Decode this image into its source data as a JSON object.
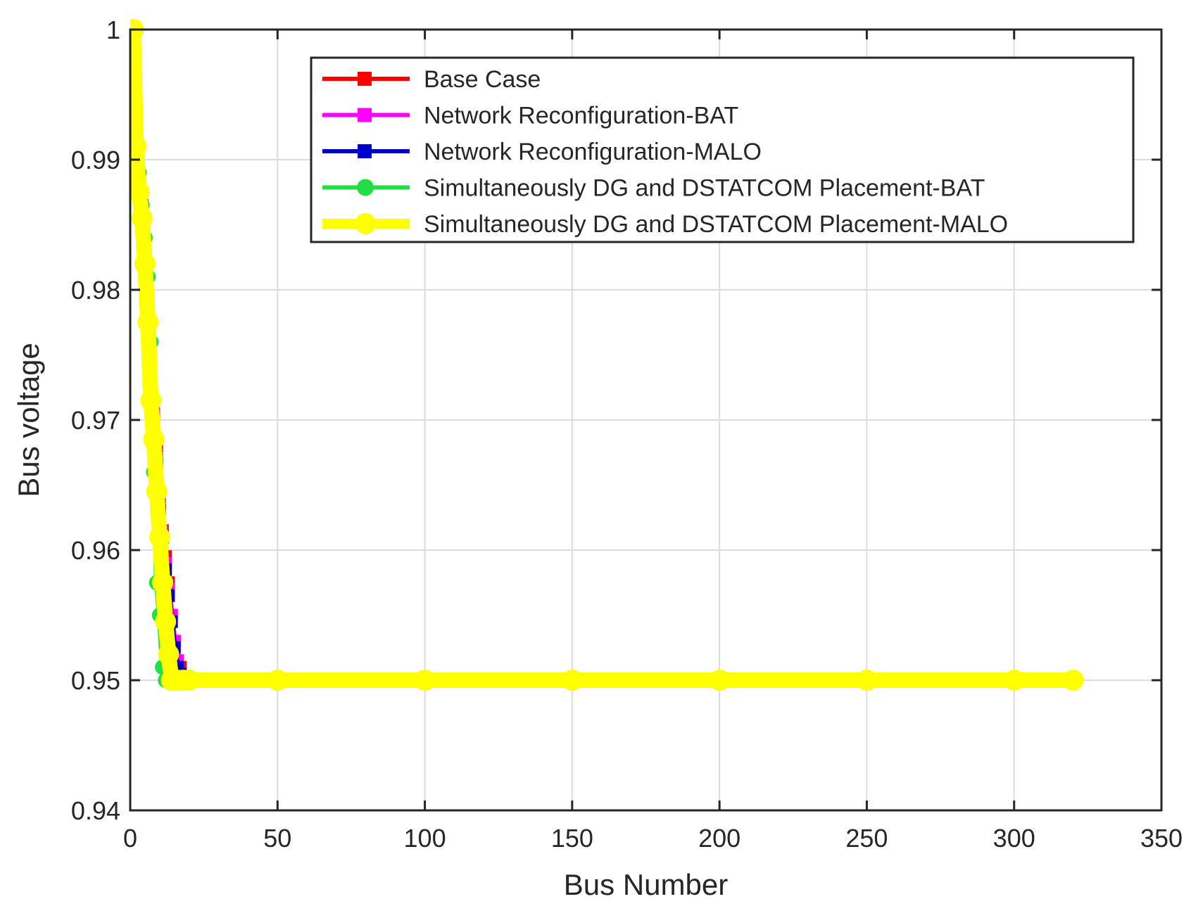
{
  "chart_data": {
    "type": "line",
    "title": "",
    "xlabel": "Bus Number",
    "ylabel": "Bus voltage",
    "xlim": [
      0,
      350
    ],
    "ylim": [
      0.94,
      1.0
    ],
    "xticks": [
      0,
      50,
      100,
      150,
      200,
      250,
      300,
      350
    ],
    "xtick_labels": [
      "0",
      "50",
      "100",
      "150",
      "200",
      "250",
      "300",
      "350"
    ],
    "yticks": [
      0.94,
      0.95,
      0.96,
      0.97,
      0.98,
      0.99,
      1.0
    ],
    "ytick_labels": [
      "0.94",
      "0.95",
      "0.96",
      "0.97",
      "0.98",
      "0.99",
      "1"
    ],
    "grid": true,
    "legend_position": "top-right",
    "series": [
      {
        "name": "Base Case",
        "color": "#ff0000",
        "marker": "square",
        "x": [
          1,
          2,
          3,
          4,
          5,
          6,
          7,
          8,
          9,
          10,
          11,
          12,
          13,
          14,
          15,
          16,
          17,
          18,
          20,
          50,
          100,
          150,
          200,
          250,
          300,
          320
        ],
        "y": [
          1.0,
          0.9925,
          0.988,
          0.9865,
          0.982,
          0.978,
          0.972,
          0.9685,
          0.968,
          0.963,
          0.961,
          0.9595,
          0.9575,
          0.955,
          0.953,
          0.9515,
          0.951,
          0.95,
          0.95,
          0.95,
          0.95,
          0.95,
          0.95,
          0.95,
          0.95,
          0.95
        ]
      },
      {
        "name": "Network Reconfiguration-BAT",
        "color": "#ff00ff",
        "marker": "square",
        "x": [
          1,
          2,
          3,
          4,
          5,
          6,
          7,
          8,
          9,
          10,
          11,
          12,
          13,
          14,
          15,
          16,
          17,
          18,
          20,
          50,
          100,
          150,
          200,
          250,
          300,
          320
        ],
        "y": [
          1.0,
          0.992,
          0.9885,
          0.9865,
          0.983,
          0.979,
          0.9735,
          0.9705,
          0.967,
          0.9635,
          0.9615,
          0.959,
          0.957,
          0.955,
          0.953,
          0.9515,
          0.9505,
          0.95,
          0.95,
          0.95,
          0.95,
          0.95,
          0.95,
          0.95,
          0.95,
          0.95
        ]
      },
      {
        "name": "Network Reconfiguration-MALO",
        "color": "#0000cc",
        "marker": "square",
        "x": [
          1,
          2,
          3,
          4,
          5,
          6,
          7,
          8,
          9,
          10,
          11,
          12,
          13,
          14,
          15,
          16,
          17,
          18,
          20,
          50,
          100,
          150,
          200,
          250,
          300,
          320
        ],
        "y": [
          1.0,
          0.9915,
          0.9885,
          0.986,
          0.9825,
          0.978,
          0.973,
          0.9695,
          0.9665,
          0.963,
          0.961,
          0.9585,
          0.9565,
          0.9545,
          0.9525,
          0.951,
          0.9505,
          0.95,
          0.95,
          0.95,
          0.95,
          0.95,
          0.95,
          0.95,
          0.95,
          0.95
        ]
      },
      {
        "name": "Simultaneously DG and DSTATCOM Placement-BAT",
        "color": "#22dd44",
        "marker": "circle",
        "x": [
          1,
          2,
          3,
          4,
          5,
          6,
          7,
          8,
          9,
          10,
          11,
          12,
          13,
          14,
          15,
          16,
          18,
          20,
          50,
          100,
          150,
          200,
          250,
          300,
          320
        ],
        "y": [
          1.0,
          0.9915,
          0.989,
          0.9865,
          0.984,
          0.981,
          0.976,
          0.966,
          0.9575,
          0.955,
          0.951,
          0.95,
          0.95,
          0.95,
          0.95,
          0.95,
          0.95,
          0.95,
          0.95,
          0.95,
          0.95,
          0.95,
          0.95,
          0.95,
          0.95
        ]
      },
      {
        "name": "Simultaneously DG and DSTATCOM Placement-MALO",
        "color": "#ffff00",
        "marker": "circle",
        "x": [
          1,
          2,
          3,
          4,
          5,
          6,
          7,
          8,
          9,
          10,
          11,
          12,
          13,
          14,
          15,
          16,
          18,
          20,
          50,
          100,
          150,
          200,
          250,
          300,
          320
        ],
        "y": [
          1.0,
          0.991,
          0.9875,
          0.9855,
          0.982,
          0.9775,
          0.9715,
          0.9685,
          0.9645,
          0.961,
          0.9575,
          0.9545,
          0.952,
          0.95,
          0.95,
          0.95,
          0.95,
          0.95,
          0.95,
          0.95,
          0.95,
          0.95,
          0.95,
          0.95,
          0.95
        ]
      }
    ]
  }
}
